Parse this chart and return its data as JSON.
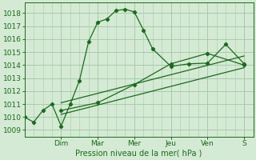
{
  "xlabel": "Pression niveau de la mer( hPa )",
  "bg_color": "#d4ead4",
  "grid_color": "#aacaaa",
  "line_color": "#1a6b1a",
  "ylim": [
    1008.5,
    1018.8
  ],
  "yticks": [
    1009,
    1010,
    1011,
    1012,
    1013,
    1014,
    1015,
    1016,
    1017,
    1018
  ],
  "day_labels": [
    "Dim",
    "Mar",
    "Mer",
    "Jeu",
    "Ven",
    "S"
  ],
  "day_positions": [
    28,
    56,
    84,
    112,
    140,
    168
  ],
  "xlim": [
    0,
    175
  ],
  "series1_x": [
    0,
    7,
    14,
    21,
    28,
    35,
    42,
    49,
    56,
    63,
    70,
    77,
    84,
    91,
    98,
    112,
    126,
    140,
    154,
    168
  ],
  "series1_y": [
    1010.0,
    1009.6,
    1010.5,
    1011.0,
    1009.3,
    1011.0,
    1012.8,
    1015.8,
    1017.3,
    1017.55,
    1018.2,
    1018.3,
    1018.1,
    1016.7,
    1015.25,
    1013.9,
    1014.1,
    1014.15,
    1015.6,
    1014.1
  ],
  "series2_x": [
    28,
    56,
    84,
    112,
    140,
    168
  ],
  "series2_y": [
    1010.5,
    1011.1,
    1012.5,
    1014.1,
    1014.9,
    1014.0
  ],
  "series3_x": [
    28,
    168
  ],
  "series3_y": [
    1010.2,
    1013.8
  ],
  "series4_x": [
    28,
    168
  ],
  "series4_y": [
    1011.1,
    1014.7
  ]
}
